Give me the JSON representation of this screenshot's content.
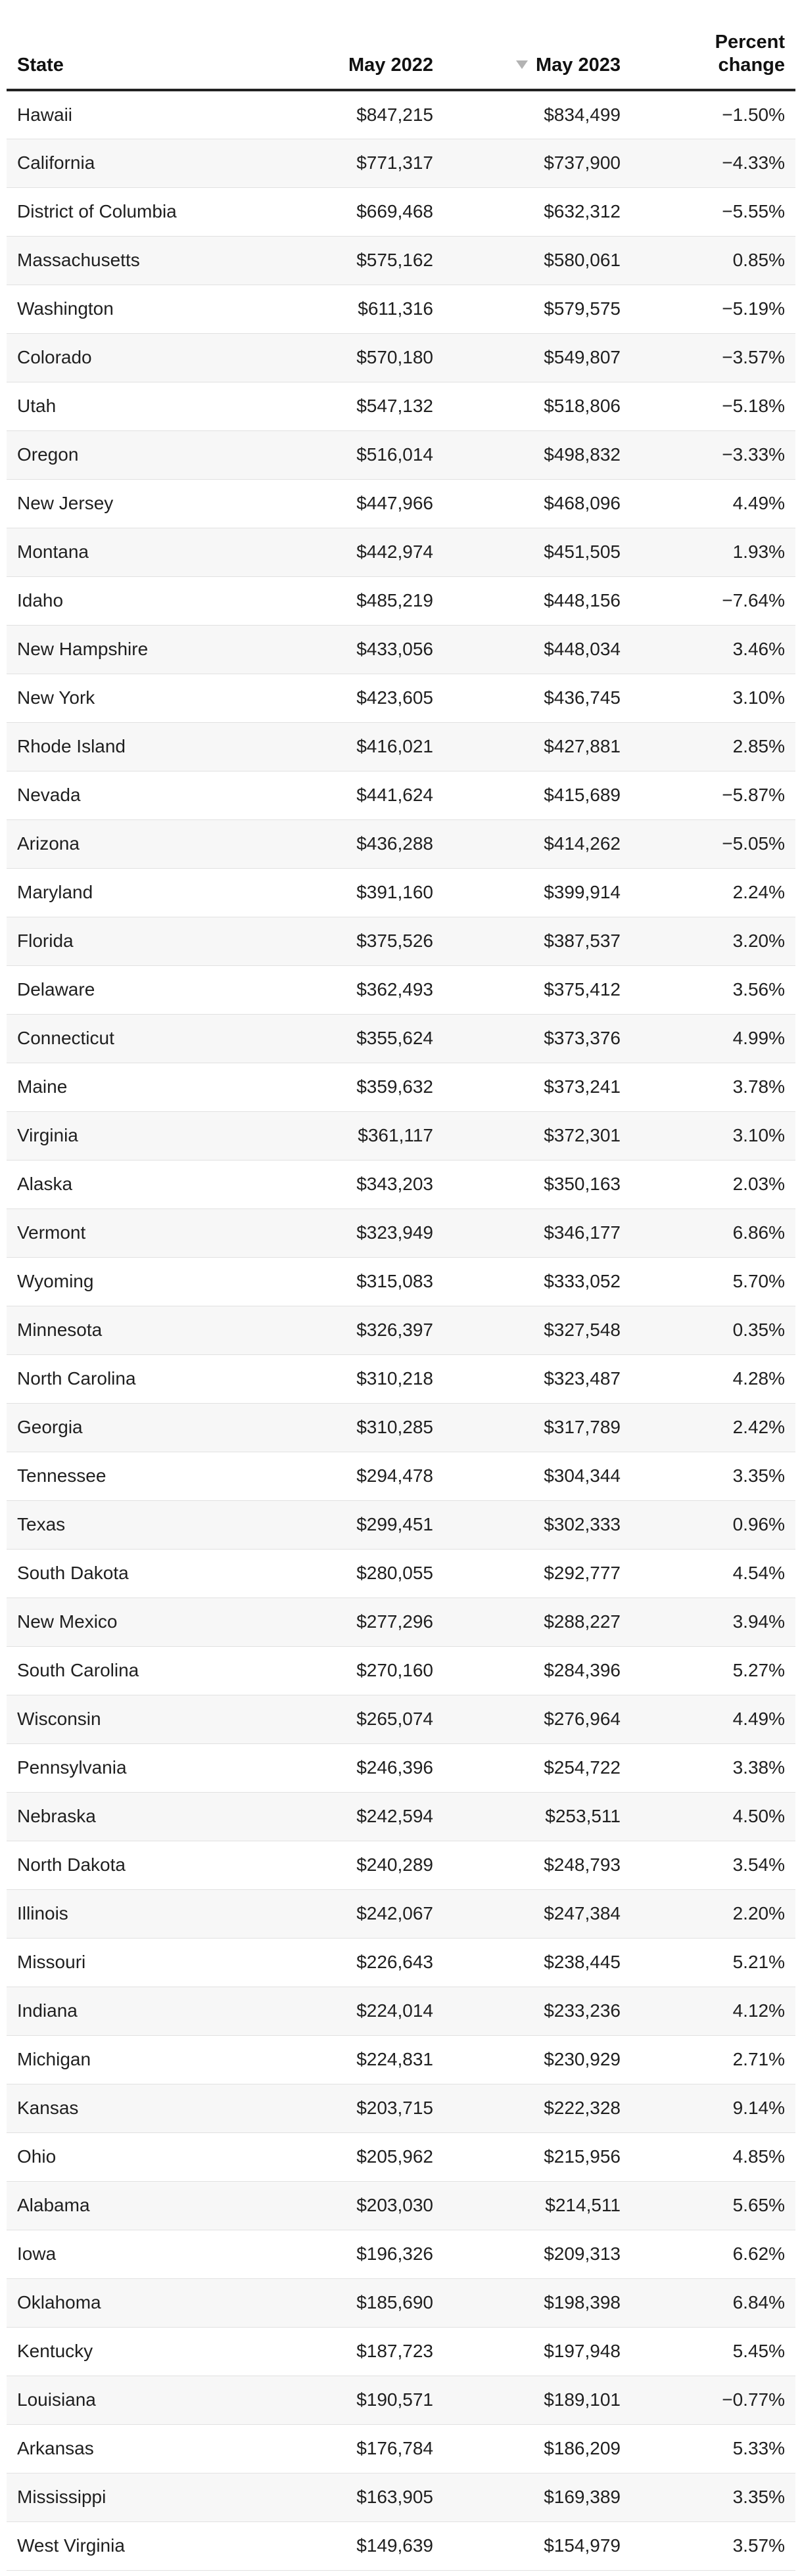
{
  "table": {
    "headers": {
      "state": "State",
      "may2022": "May 2022",
      "may2023": "May 2023",
      "percent_line1": "Percent",
      "percent_line2": "change"
    },
    "sorted_column": "May 2023",
    "rows": [
      {
        "state": "Hawaii",
        "may2022": "$847,215",
        "may2023": "$834,499",
        "change": "−1.50%"
      },
      {
        "state": "California",
        "may2022": "$771,317",
        "may2023": "$737,900",
        "change": "−4.33%"
      },
      {
        "state": "District of Columbia",
        "may2022": "$669,468",
        "may2023": "$632,312",
        "change": "−5.55%"
      },
      {
        "state": "Massachusetts",
        "may2022": "$575,162",
        "may2023": "$580,061",
        "change": "0.85%"
      },
      {
        "state": "Washington",
        "may2022": "$611,316",
        "may2023": "$579,575",
        "change": "−5.19%"
      },
      {
        "state": "Colorado",
        "may2022": "$570,180",
        "may2023": "$549,807",
        "change": "−3.57%"
      },
      {
        "state": "Utah",
        "may2022": "$547,132",
        "may2023": "$518,806",
        "change": "−5.18%"
      },
      {
        "state": "Oregon",
        "may2022": "$516,014",
        "may2023": "$498,832",
        "change": "−3.33%"
      },
      {
        "state": "New Jersey",
        "may2022": "$447,966",
        "may2023": "$468,096",
        "change": "4.49%"
      },
      {
        "state": "Montana",
        "may2022": "$442,974",
        "may2023": "$451,505",
        "change": "1.93%"
      },
      {
        "state": "Idaho",
        "may2022": "$485,219",
        "may2023": "$448,156",
        "change": "−7.64%"
      },
      {
        "state": "New Hampshire",
        "may2022": "$433,056",
        "may2023": "$448,034",
        "change": "3.46%"
      },
      {
        "state": "New York",
        "may2022": "$423,605",
        "may2023": "$436,745",
        "change": "3.10%"
      },
      {
        "state": "Rhode Island",
        "may2022": "$416,021",
        "may2023": "$427,881",
        "change": "2.85%"
      },
      {
        "state": "Nevada",
        "may2022": "$441,624",
        "may2023": "$415,689",
        "change": "−5.87%"
      },
      {
        "state": "Arizona",
        "may2022": "$436,288",
        "may2023": "$414,262",
        "change": "−5.05%"
      },
      {
        "state": "Maryland",
        "may2022": "$391,160",
        "may2023": "$399,914",
        "change": "2.24%"
      },
      {
        "state": "Florida",
        "may2022": "$375,526",
        "may2023": "$387,537",
        "change": "3.20%"
      },
      {
        "state": "Delaware",
        "may2022": "$362,493",
        "may2023": "$375,412",
        "change": "3.56%"
      },
      {
        "state": "Connecticut",
        "may2022": "$355,624",
        "may2023": "$373,376",
        "change": "4.99%"
      },
      {
        "state": "Maine",
        "may2022": "$359,632",
        "may2023": "$373,241",
        "change": "3.78%"
      },
      {
        "state": "Virginia",
        "may2022": "$361,117",
        "may2023": "$372,301",
        "change": "3.10%"
      },
      {
        "state": "Alaska",
        "may2022": "$343,203",
        "may2023": "$350,163",
        "change": "2.03%"
      },
      {
        "state": "Vermont",
        "may2022": "$323,949",
        "may2023": "$346,177",
        "change": "6.86%"
      },
      {
        "state": "Wyoming",
        "may2022": "$315,083",
        "may2023": "$333,052",
        "change": "5.70%"
      },
      {
        "state": "Minnesota",
        "may2022": "$326,397",
        "may2023": "$327,548",
        "change": "0.35%"
      },
      {
        "state": "North Carolina",
        "may2022": "$310,218",
        "may2023": "$323,487",
        "change": "4.28%"
      },
      {
        "state": "Georgia",
        "may2022": "$310,285",
        "may2023": "$317,789",
        "change": "2.42%"
      },
      {
        "state": "Tennessee",
        "may2022": "$294,478",
        "may2023": "$304,344",
        "change": "3.35%"
      },
      {
        "state": "Texas",
        "may2022": "$299,451",
        "may2023": "$302,333",
        "change": "0.96%"
      },
      {
        "state": "South Dakota",
        "may2022": "$280,055",
        "may2023": "$292,777",
        "change": "4.54%"
      },
      {
        "state": "New Mexico",
        "may2022": "$277,296",
        "may2023": "$288,227",
        "change": "3.94%"
      },
      {
        "state": "South Carolina",
        "may2022": "$270,160",
        "may2023": "$284,396",
        "change": "5.27%"
      },
      {
        "state": "Wisconsin",
        "may2022": "$265,074",
        "may2023": "$276,964",
        "change": "4.49%"
      },
      {
        "state": "Pennsylvania",
        "may2022": "$246,396",
        "may2023": "$254,722",
        "change": "3.38%"
      },
      {
        "state": "Nebraska",
        "may2022": "$242,594",
        "may2023": "$253,511",
        "change": "4.50%"
      },
      {
        "state": "North Dakota",
        "may2022": "$240,289",
        "may2023": "$248,793",
        "change": "3.54%"
      },
      {
        "state": "Illinois",
        "may2022": "$242,067",
        "may2023": "$247,384",
        "change": "2.20%"
      },
      {
        "state": "Missouri",
        "may2022": "$226,643",
        "may2023": "$238,445",
        "change": "5.21%"
      },
      {
        "state": "Indiana",
        "may2022": "$224,014",
        "may2023": "$233,236",
        "change": "4.12%"
      },
      {
        "state": "Michigan",
        "may2022": "$224,831",
        "may2023": "$230,929",
        "change": "2.71%"
      },
      {
        "state": "Kansas",
        "may2022": "$203,715",
        "may2023": "$222,328",
        "change": "9.14%"
      },
      {
        "state": "Ohio",
        "may2022": "$205,962",
        "may2023": "$215,956",
        "change": "4.85%"
      },
      {
        "state": "Alabama",
        "may2022": "$203,030",
        "may2023": "$214,511",
        "change": "5.65%"
      },
      {
        "state": "Iowa",
        "may2022": "$196,326",
        "may2023": "$209,313",
        "change": "6.62%"
      },
      {
        "state": "Oklahoma",
        "may2022": "$185,690",
        "may2023": "$198,398",
        "change": "6.84%"
      },
      {
        "state": "Kentucky",
        "may2022": "$187,723",
        "may2023": "$197,948",
        "change": "5.45%"
      },
      {
        "state": "Louisiana",
        "may2022": "$190,571",
        "may2023": "$189,101",
        "change": "−0.77%"
      },
      {
        "state": "Arkansas",
        "may2022": "$176,784",
        "may2023": "$186,209",
        "change": "5.33%"
      },
      {
        "state": "Mississippi",
        "may2022": "$163,905",
        "may2023": "$169,389",
        "change": "3.35%"
      },
      {
        "state": "West Virginia",
        "may2022": "$149,639",
        "may2023": "$154,979",
        "change": "3.57%"
      }
    ]
  }
}
